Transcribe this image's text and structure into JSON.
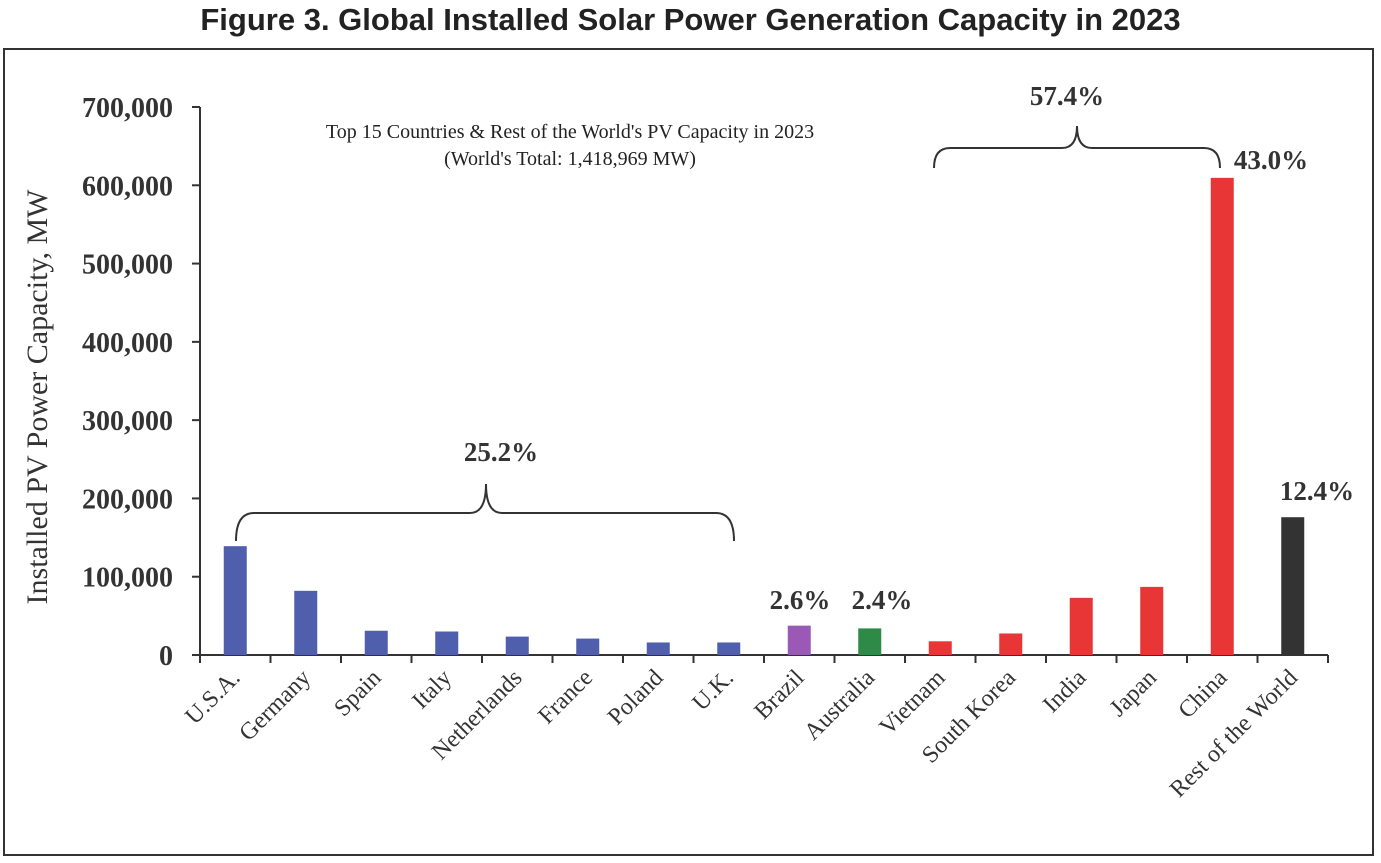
{
  "figure_title": "Figure 3. Global Installed Solar Power Generation Capacity in 2023",
  "chart_data": {
    "type": "bar",
    "subtitle_line1": "Top 15 Countries & Rest of the World's PV Capacity in 2023",
    "subtitle_line2": "(World's Total: 1,418,969 MW)",
    "ylabel": "Installed PV Power Capacity, MW",
    "ylim": [
      0,
      700000
    ],
    "yticks": [
      "0",
      "100,000",
      "200,000",
      "300,000",
      "400,000",
      "500,000",
      "600,000",
      "700,000"
    ],
    "grid": false,
    "categories": [
      "U.S.A.",
      "Germany",
      "Spain",
      "Italy",
      "Netherlands",
      "France",
      "Poland",
      "U.K.",
      "Brazil",
      "Australia",
      "Vietnam",
      "South Korea",
      "India",
      "Japan",
      "China",
      "Rest of the World"
    ],
    "values": [
      139000,
      82000,
      31000,
      30000,
      23500,
      21000,
      16000,
      16000,
      37500,
      34000,
      17500,
      27500,
      73000,
      87000,
      609500,
      176000
    ],
    "colors": [
      "#4f5fad",
      "#4f5fad",
      "#4f5fad",
      "#4f5fad",
      "#4f5fad",
      "#4f5fad",
      "#4f5fad",
      "#4f5fad",
      "#9b59b6",
      "#2e8b47",
      "#e83535",
      "#e83535",
      "#e83535",
      "#e83535",
      "#e83535",
      "#333333"
    ],
    "annotations": {
      "group_europe_us": "25.2%",
      "group_asia": "57.4%",
      "china": "43.0%",
      "brazil": "2.6%",
      "australia": "2.4%",
      "rest_of_world": "12.4%"
    }
  }
}
